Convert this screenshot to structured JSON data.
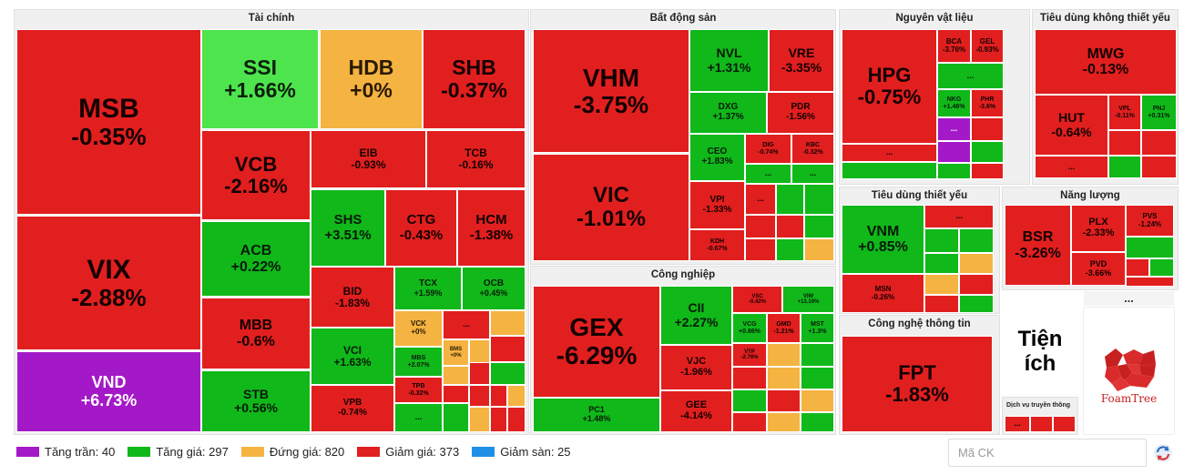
{
  "sectors": [
    {
      "id": "tai-chinh",
      "title": "Tài chính"
    },
    {
      "id": "bat-dong-san",
      "title": "Bất động sản"
    },
    {
      "id": "nguyen-vat-lieu",
      "title": "Nguyên vật liệu"
    },
    {
      "id": "tieu-dung-khong-thiet-yeu",
      "title": "Tiêu dùng không thiết yếu"
    },
    {
      "id": "cong-nghiep",
      "title": "Công nghiệp"
    },
    {
      "id": "tieu-dung-thiet-yeu",
      "title": "Tiêu dùng thiết yếu"
    },
    {
      "id": "nang-luong",
      "title": "Năng lượng"
    },
    {
      "id": "cong-nghe-thong-tin",
      "title": "Công nghệ thông tin"
    },
    {
      "id": "dich-vu-truyen-thong",
      "title": "Dịch vụ truyền thông"
    }
  ],
  "tiles": [
    {
      "sym": "MSB",
      "chg": "-0.35%",
      "s": "down"
    },
    {
      "sym": "VIX",
      "chg": "-2.88%",
      "s": "down"
    },
    {
      "sym": "VND",
      "chg": "+6.73%",
      "s": "ceil"
    },
    {
      "sym": "SSI",
      "chg": "+1.66%",
      "s": "ssi"
    },
    {
      "sym": "HDB",
      "chg": "+0%",
      "s": "ref"
    },
    {
      "sym": "SHB",
      "chg": "-0.37%",
      "s": "down"
    },
    {
      "sym": "VCB",
      "chg": "-2.16%",
      "s": "down"
    },
    {
      "sym": "ACB",
      "chg": "+0.22%",
      "s": "up"
    },
    {
      "sym": "MBB",
      "chg": "-0.6%",
      "s": "down"
    },
    {
      "sym": "STB",
      "chg": "+0.56%",
      "s": "up"
    },
    {
      "sym": "EIB",
      "chg": "-0.93%",
      "s": "down"
    },
    {
      "sym": "TCB",
      "chg": "-0.16%",
      "s": "down"
    },
    {
      "sym": "SHS",
      "chg": "+3.51%",
      "s": "up"
    },
    {
      "sym": "CTG",
      "chg": "-0.43%",
      "s": "down"
    },
    {
      "sym": "HCM",
      "chg": "-1.38%",
      "s": "down"
    },
    {
      "sym": "BID",
      "chg": "-1.83%",
      "s": "down"
    },
    {
      "sym": "VCI",
      "chg": "+1.63%",
      "s": "up"
    },
    {
      "sym": "VPB",
      "chg": "-0.74%",
      "s": "down"
    },
    {
      "sym": "TCX",
      "chg": "+1.59%",
      "s": "up"
    },
    {
      "sym": "OCB",
      "chg": "+0.45%",
      "s": "up"
    },
    {
      "sym": "VCK",
      "chg": "+0%",
      "s": "ref"
    },
    {
      "sym": "BMS",
      "chg": "+0%",
      "s": "ref"
    },
    {
      "sym": "MBS",
      "chg": "+2.07%",
      "s": "up"
    },
    {
      "sym": "TPB",
      "chg": "-0.32%",
      "s": "down"
    },
    {
      "sym": "VHM",
      "chg": "-3.75%",
      "s": "down"
    },
    {
      "sym": "VIC",
      "chg": "-1.01%",
      "s": "down"
    },
    {
      "sym": "NVL",
      "chg": "+1.31%",
      "s": "up"
    },
    {
      "sym": "VRE",
      "chg": "-3.35%",
      "s": "down"
    },
    {
      "sym": "DXG",
      "chg": "+1.37%",
      "s": "up"
    },
    {
      "sym": "PDR",
      "chg": "-1.56%",
      "s": "down"
    },
    {
      "sym": "CEO",
      "chg": "+1.83%",
      "s": "up"
    },
    {
      "sym": "DIG",
      "chg": "-0.74%",
      "s": "down"
    },
    {
      "sym": "KBC",
      "chg": "-0.32%",
      "s": "down"
    },
    {
      "sym": "VPI",
      "chg": "-1.33%",
      "s": "down"
    },
    {
      "sym": "KDH",
      "chg": "-0.67%",
      "s": "down"
    },
    {
      "sym": "GEX",
      "chg": "-6.29%",
      "s": "down"
    },
    {
      "sym": "PC1",
      "chg": "+1.48%",
      "s": "up"
    },
    {
      "sym": "CII",
      "chg": "+2.27%",
      "s": "up"
    },
    {
      "sym": "VJC",
      "chg": "-1.96%",
      "s": "down"
    },
    {
      "sym": "GEE",
      "chg": "-4.14%",
      "s": "down"
    },
    {
      "sym": "VSC",
      "chg": "-0.42%",
      "s": "down"
    },
    {
      "sym": "VIW",
      "chg": "+13.19%",
      "s": "up"
    },
    {
      "sym": "VCG",
      "chg": "+0.86%",
      "s": "up"
    },
    {
      "sym": "GMD",
      "chg": "-1.21%",
      "s": "down"
    },
    {
      "sym": "MST",
      "chg": "+1.3%",
      "s": "up"
    },
    {
      "sym": "VTP",
      "chg": "-2.76%",
      "s": "down"
    },
    {
      "sym": "HPG",
      "chg": "-0.75%",
      "s": "down"
    },
    {
      "sym": "BCA",
      "chg": "-3.76%",
      "s": "down"
    },
    {
      "sym": "GEL",
      "chg": "-0.93%",
      "s": "down"
    },
    {
      "sym": "NKG",
      "chg": "+1.46%",
      "s": "up"
    },
    {
      "sym": "PHR",
      "chg": "-3.6%",
      "s": "down"
    },
    {
      "sym": "MWG",
      "chg": "-0.13%",
      "s": "down"
    },
    {
      "sym": "HUT",
      "chg": "-0.64%",
      "s": "down"
    },
    {
      "sym": "VPL",
      "chg": "-0.11%",
      "s": "down"
    },
    {
      "sym": "PNJ",
      "chg": "+0.31%",
      "s": "up"
    },
    {
      "sym": "VNM",
      "chg": "+0.85%",
      "s": "up"
    },
    {
      "sym": "MSN",
      "chg": "-0.26%",
      "s": "down"
    },
    {
      "sym": "BSR",
      "chg": "-3.26%",
      "s": "down"
    },
    {
      "sym": "PLX",
      "chg": "-2.33%",
      "s": "down"
    },
    {
      "sym": "PVS",
      "chg": "-1.24%",
      "s": "down"
    },
    {
      "sym": "PVD",
      "chg": "-3.66%",
      "s": "down"
    },
    {
      "sym": "FPT",
      "chg": "-1.83%",
      "s": "down"
    }
  ],
  "ellipsis": "...",
  "utility_label": "Tiện ích",
  "foamtree_label": "FoamTree",
  "legend": [
    {
      "label": "Tăng trần: 40",
      "color": "#a419c7"
    },
    {
      "label": "Tăng giá: 297",
      "color": "#10b81a"
    },
    {
      "label": "Đứng giá: 820",
      "color": "#f5b342"
    },
    {
      "label": "Giảm giá: 373",
      "color": "#e11f1f"
    },
    {
      "label": "Giảm sàn: 25",
      "color": "#1e8fe6"
    }
  ],
  "search": {
    "placeholder": "Mã CK"
  }
}
